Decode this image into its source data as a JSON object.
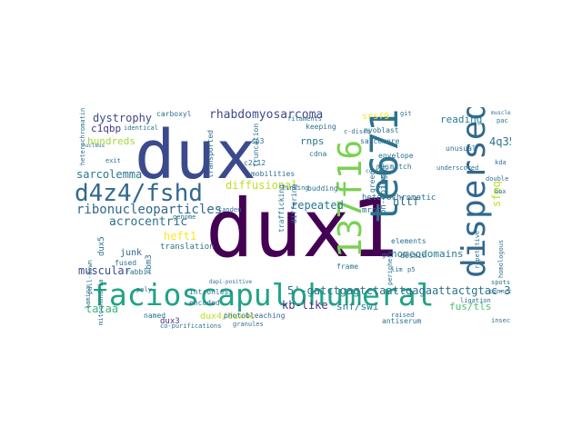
{
  "words": [
    {
      "text": "dux1",
      "color": "#440154"
    },
    {
      "text": "dux",
      "color": "#3b4a8c"
    },
    {
      "text": "facioscapulohumeral",
      "color": "#20a486"
    },
    {
      "text": "te671",
      "color": "#2c728e"
    },
    {
      "text": "dispersed",
      "color": "#31688e"
    },
    {
      "text": "137f16",
      "color": "#7ad151"
    },
    {
      "text": "d4z4/fshd",
      "color": "#31688e"
    },
    {
      "text": "diffusional",
      "color": "#bddf26"
    },
    {
      "text": "rhabdomyosarcoma",
      "color": "#3e4a89"
    },
    {
      "text": "ribonucleoparticles",
      "color": "#31688e"
    },
    {
      "text": "5'-gatctgagtctaattgagaattactgtac-3",
      "color": "#2c728e"
    },
    {
      "text": "homeodomains",
      "color": "#2a788e"
    },
    {
      "text": "dystrophy",
      "color": "#3e4a89"
    },
    {
      "text": "reading",
      "color": "#27808e"
    },
    {
      "text": "sarcolemma",
      "color": "#2a788e"
    },
    {
      "text": "acrocentric",
      "color": "#2c728e"
    },
    {
      "text": "muscular",
      "color": "#3e4a89"
    },
    {
      "text": "snf/swi",
      "color": "#2a788e"
    },
    {
      "text": "fus/tls",
      "color": "#4ac16d"
    },
    {
      "text": "repeated",
      "color": "#2a788e"
    },
    {
      "text": "kb-like",
      "color": "#46337e"
    },
    {
      "text": "tataa",
      "color": "#35b779"
    },
    {
      "text": "hundreds",
      "color": "#a0da39"
    },
    {
      "text": "c1qbp",
      "color": "#443983"
    },
    {
      "text": "hltf",
      "color": "#31688e"
    },
    {
      "text": "4q35",
      "color": "#2c728e"
    },
    {
      "text": "sfpq",
      "color": "#bddf26"
    },
    {
      "text": "srsf9",
      "color": "#fde725"
    },
    {
      "text": "rnps",
      "color": "#2a788e"
    },
    {
      "text": "heft1",
      "color": "#fde725"
    },
    {
      "text": "dux4/dux4c",
      "color": "#bddf26"
    },
    {
      "text": "junk",
      "color": "#31688e"
    },
    {
      "text": "translation",
      "color": "#2c728e"
    },
    {
      "text": "dux3",
      "color": "#443983"
    },
    {
      "text": "antiserum",
      "color": "#2c728e"
    },
    {
      "text": "photobleaching",
      "color": "#31688e"
    },
    {
      "text": "heterochromatic",
      "color": "#2c728e"
    },
    {
      "text": "mrnp",
      "color": "#2c728e"
    },
    {
      "text": "envelope",
      "color": "#2c728e"
    },
    {
      "text": "transported",
      "color": "#31688e"
    },
    {
      "text": "truncation",
      "color": "#2c728e"
    },
    {
      "text": "keeping",
      "color": "#2c728e"
    },
    {
      "text": "mismatch",
      "color": "#2c728e"
    },
    {
      "text": "frame",
      "color": "#2c728e"
    },
    {
      "text": "elements",
      "color": "#2c728e"
    },
    {
      "text": "encoded",
      "color": "#2c728e"
    },
    {
      "text": "co-purifications",
      "color": "#2c728e"
    },
    {
      "text": "granules",
      "color": "#2c728e"
    },
    {
      "text": "intronless",
      "color": "#2c728e"
    },
    {
      "text": "mobilities",
      "color": "#2c728e"
    },
    {
      "text": "sarcomere",
      "color": "#2c728e"
    },
    {
      "text": "myoblast",
      "color": "#2c728e"
    },
    {
      "text": "identical",
      "color": "#2c728e"
    },
    {
      "text": "carboxyl",
      "color": "#2c728e"
    },
    {
      "text": "fused",
      "color": "#2c728e"
    },
    {
      "text": "rabbit",
      "color": "#2c728e"
    },
    {
      "text": "named",
      "color": "#2c728e"
    },
    {
      "text": "exit",
      "color": "#2c728e"
    },
    {
      "text": "genome",
      "color": "#2c728e"
    },
    {
      "text": "tanden",
      "color": "#2c728e"
    },
    {
      "text": "desmin",
      "color": "#2c728e"
    },
    {
      "text": "lim",
      "color": "#2c728e"
    },
    {
      "text": "p5",
      "color": "#2c728e"
    },
    {
      "text": "gc",
      "color": "#2c728e"
    },
    {
      "text": "cdna",
      "color": "#2c728e"
    },
    {
      "text": "sp3",
      "color": "#2c728e"
    },
    {
      "text": "c2c12",
      "color": "#2c728e"
    },
    {
      "text": "budding",
      "color": "#2c728e"
    },
    {
      "text": "underscored",
      "color": "#2c728e"
    },
    {
      "text": "unusual",
      "color": "#2c728e"
    },
    {
      "text": "double",
      "color": "#2c728e"
    },
    {
      "text": "box",
      "color": "#2c728e"
    },
    {
      "text": "pac",
      "color": "#2c728e"
    },
    {
      "text": "kda",
      "color": "#2c728e"
    },
    {
      "text": "spots",
      "color": "#2c728e"
    },
    {
      "text": "connect",
      "color": "#2c728e"
    },
    {
      "text": "insect",
      "color": "#2c728e"
    },
    {
      "text": "raised",
      "color": "#2c728e"
    },
    {
      "text": "ligation",
      "color": "#2c728e"
    },
    {
      "text": "repetitive",
      "color": "#2c728e"
    },
    {
      "text": "homologous",
      "color": "#2c728e"
    },
    {
      "text": "poly",
      "color": "#2c728e"
    },
    {
      "text": "lamina",
      "color": "#2c728e"
    },
    {
      "text": "mitochondria",
      "color": "#2c728e"
    },
    {
      "text": "dapi-positive",
      "color": "#2c728e"
    },
    {
      "text": "rbm3",
      "color": "#2c728e"
    },
    {
      "text": "dux5",
      "color": "#2c728e"
    },
    {
      "text": "pull-down",
      "color": "#2c728e"
    },
    {
      "text": "heterochromatin",
      "color": "#2c728e"
    },
    {
      "text": "c-discs",
      "color": "#2c728e"
    },
    {
      "text": "lmcd1",
      "color": "#2c728e"
    },
    {
      "text": "green",
      "color": "#2c728e"
    },
    {
      "text": "on-going",
      "color": "#2c728e"
    },
    {
      "text": "differing",
      "color": "#2c728e"
    },
    {
      "text": "trafficking",
      "color": "#2c728e"
    },
    {
      "text": "linking",
      "color": "#2c728e"
    },
    {
      "text": "contact",
      "color": "#2c728e"
    },
    {
      "text": "filaments",
      "color": "#2c728e"
    },
    {
      "text": "periphery",
      "color": "#2c728e"
    },
    {
      "text": "nucleus",
      "color": "#2c728e"
    },
    {
      "text": "git",
      "color": "#2c728e"
    },
    {
      "text": "muscle",
      "color": "#2c728e"
    }
  ]
}
